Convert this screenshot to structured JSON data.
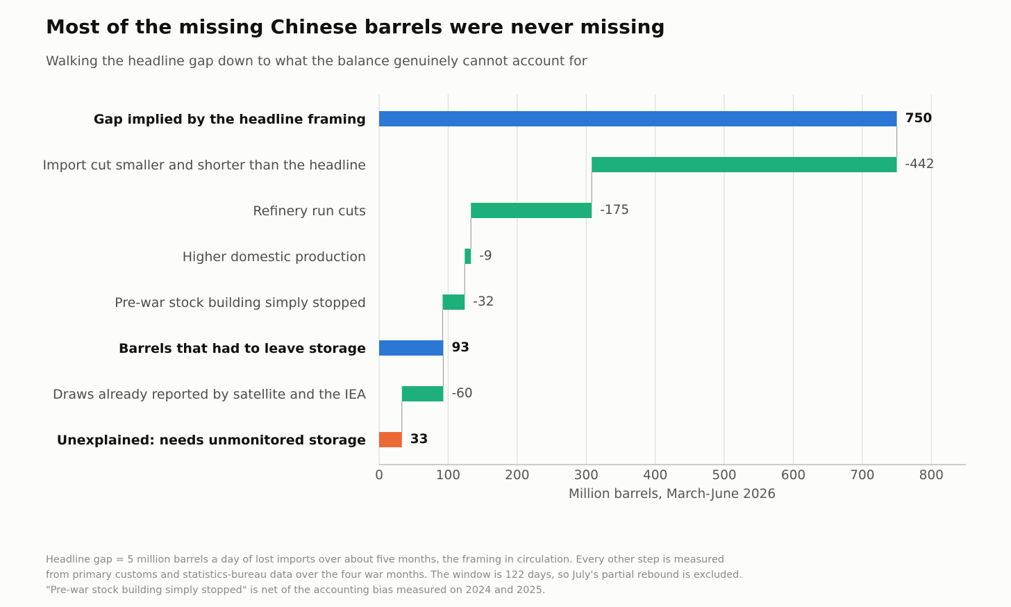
{
  "title": "Most of the missing Chinese barrels were never missing",
  "subtitle": "Walking the headline gap down to what the balance genuinely cannot account for",
  "chart_data": {
    "type": "bar",
    "subtype": "waterfall",
    "orientation": "horizontal",
    "xlabel": "Million barrels, March-June 2026",
    "xlim": [
      0,
      850
    ],
    "xticks": [
      0,
      100,
      200,
      300,
      400,
      500,
      600,
      700,
      800
    ],
    "grid": "vertical",
    "steps": [
      {
        "label": "Gap implied by the headline framing",
        "value": 750,
        "value_label": "750",
        "kind": "total"
      },
      {
        "label": "Import cut smaller and shorter than the headline",
        "value": -442,
        "value_label": "-442",
        "kind": "decrease"
      },
      {
        "label": "Refinery run cuts",
        "value": -175,
        "value_label": "-175",
        "kind": "decrease"
      },
      {
        "label": "Higher domestic production",
        "value": -9,
        "value_label": "-9",
        "kind": "decrease"
      },
      {
        "label": "Pre-war stock building simply stopped",
        "value": -32,
        "value_label": "-32",
        "kind": "decrease"
      },
      {
        "label": "Barrels that had to leave storage",
        "value": 93,
        "value_label": "93",
        "kind": "total"
      },
      {
        "label": "Draws already reported by satellite and the IEA",
        "value": -60,
        "value_label": "-60",
        "kind": "decrease"
      },
      {
        "label": "Unexplained: needs unmonitored storage",
        "value": 33,
        "value_label": "33",
        "kind": "remainder"
      }
    ]
  },
  "colors": {
    "total": "#2b78d4",
    "decrease": "#1db07a",
    "remainder": "#ec6936",
    "connector": "#a0a0a0",
    "grid": "#dedede",
    "axis": "#b0b0b0"
  },
  "footnote": [
    "Headline gap = 5 million barrels a day of lost imports over about five months, the framing in circulation. Every other step is measured",
    "from primary customs and statistics-bureau data over the four war months. The window is 122 days, so July's partial rebound is excluded.",
    "\"Pre-war stock building simply stopped\" is net of the accounting bias measured on 2024 and 2025."
  ]
}
